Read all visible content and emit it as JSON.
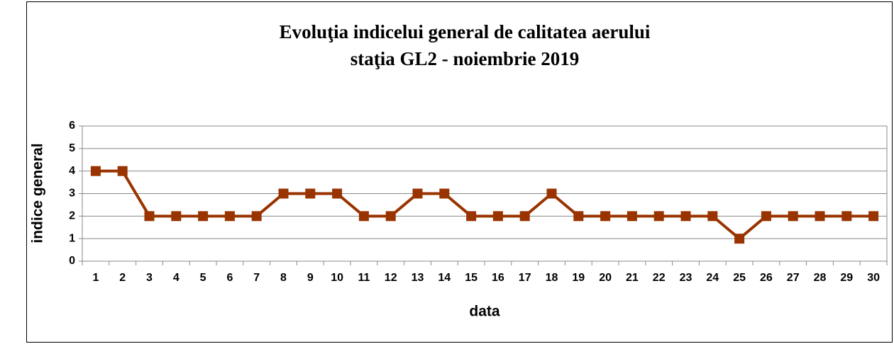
{
  "chart_data": {
    "type": "line",
    "title": "Evoluţia indicelui general de calitatea aerului",
    "subtitle": "staţia GL2 - noiembrie 2019",
    "x_label": "data",
    "y_label": "indice general",
    "categories": [
      "1",
      "2",
      "3",
      "4",
      "5",
      "6",
      "7",
      "8",
      "9",
      "10",
      "11",
      "12",
      "13",
      "14",
      "15",
      "16",
      "17",
      "18",
      "19",
      "20",
      "21",
      "22",
      "23",
      "24",
      "25",
      "26",
      "27",
      "28",
      "29",
      "30"
    ],
    "values": [
      4,
      4,
      2,
      2,
      2,
      2,
      2,
      3,
      3,
      3,
      2,
      2,
      3,
      3,
      2,
      2,
      2,
      3,
      2,
      2,
      2,
      2,
      2,
      2,
      1,
      2,
      2,
      2,
      2,
      2
    ],
    "color": "#993300",
    "ylim": [
      0,
      6
    ],
    "yticks": [
      0,
      1,
      2,
      3,
      4,
      5,
      6
    ],
    "grid": true
  }
}
